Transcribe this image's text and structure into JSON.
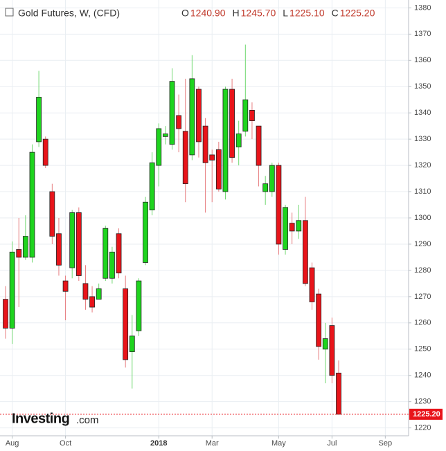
{
  "chart_data": {
    "type": "candlestick",
    "title": "Gold Futures, W, (CFD)",
    "legend_ohlc": [
      {
        "name": "O",
        "value": "1240.90"
      },
      {
        "name": "H",
        "value": "1245.70"
      },
      {
        "name": "L",
        "value": "1225.10"
      },
      {
        "name": "C",
        "value": "1225.20"
      }
    ],
    "categories": [
      null,
      "Aug",
      null,
      null,
      null,
      null,
      null,
      null,
      null,
      "Oct",
      null,
      null,
      null,
      null,
      null,
      null,
      null,
      null,
      null,
      null,
      null,
      null,
      null,
      "2018",
      null,
      null,
      null,
      null,
      null,
      null,
      null,
      "Mar",
      null,
      null,
      null,
      null,
      null,
      null,
      null,
      null,
      null,
      "May",
      null,
      null,
      null,
      null,
      null,
      null,
      null,
      "Jul",
      null,
      null,
      null,
      null,
      null,
      null,
      null,
      "Sep",
      null,
      null
    ],
    "open": [
      1269,
      1258,
      1288,
      1285,
      1285,
      1329,
      1330,
      1310,
      1294,
      1276,
      1281,
      1302,
      1275,
      1270,
      1269,
      1277,
      1277,
      1294,
      1273,
      1249,
      1257,
      1283,
      1303,
      1320,
      1331,
      1328,
      1339,
      1333,
      1324,
      1349,
      1335,
      1324,
      1326,
      1310,
      1349,
      1327,
      1333,
      1341,
      1335,
      1310,
      1310,
      1320,
      1288,
      1298,
      1295,
      1299,
      1281,
      1271,
      1250,
      1259,
      1240.9,
      null,
      null,
      null,
      null,
      null,
      null,
      null,
      null,
      null
    ],
    "high": [
      1274,
      1291,
      1300,
      1301,
      1328,
      1356,
      1331,
      1313,
      1300,
      1278,
      1303,
      1304,
      1282,
      1274,
      1275,
      1297,
      1289,
      1296,
      1278,
      1263,
      1277,
      1308,
      1325,
      1336,
      1335,
      1357,
      1347,
      1353,
      1362,
      1350,
      1338,
      1326,
      1329,
      1350,
      1353,
      1337,
      1366,
      1344,
      1335,
      1316,
      1321,
      1321,
      1305,
      1302,
      1305,
      1308,
      1283,
      1273,
      1260,
      1262,
      1245.7,
      null,
      null,
      null,
      null,
      null,
      null,
      null,
      null,
      null
    ],
    "low": [
      1254,
      1252,
      1266,
      1284,
      1283,
      1327,
      1319,
      1290,
      1278,
      1261,
      1277,
      1276,
      1265,
      1264,
      1269,
      1276,
      1275,
      1277,
      1243,
      1235,
      1255,
      1282,
      1301,
      1312,
      1328,
      1326,
      1325,
      1306,
      1322,
      1323,
      1302,
      1306,
      1310,
      1307,
      1321,
      1320,
      1331,
      1330,
      1312,
      1305,
      1308,
      1286,
      1286,
      1290,
      1292,
      1274,
      1265,
      1246,
      1237,
      1237,
      1225.1,
      null,
      null,
      null,
      null,
      null,
      null,
      null,
      null,
      null
    ],
    "close": [
      1258,
      1287,
      1285,
      1293,
      1325,
      1346,
      1320,
      1293,
      1282,
      1272,
      1302,
      1278,
      1269,
      1266,
      1273,
      1296,
      1287,
      1279,
      1246,
      1255,
      1276,
      1306,
      1321,
      1334,
      1332,
      1352,
      1334,
      1313,
      1353,
      1329,
      1321,
      1322,
      1311,
      1349,
      1323,
      1332,
      1345,
      1337,
      1320,
      1313,
      1320,
      1290,
      1304,
      1295,
      1299,
      1275,
      1268,
      1251,
      1254,
      1240,
      1225.2,
      null,
      null,
      null,
      null,
      null,
      null,
      null,
      null,
      null
    ],
    "up_color": "#1ed41e",
    "down_color": "#e8141a",
    "ylim": [
      1217,
      1383
    ],
    "yticks": [
      1220,
      1230,
      1240,
      1250,
      1260,
      1270,
      1280,
      1290,
      1300,
      1310,
      1320,
      1330,
      1340,
      1350,
      1360,
      1370,
      1380
    ],
    "grid": true,
    "last_price": {
      "value": 1225.2,
      "label": "1225.20"
    },
    "logo": "Investing",
    "logo_suffix": ".com"
  }
}
